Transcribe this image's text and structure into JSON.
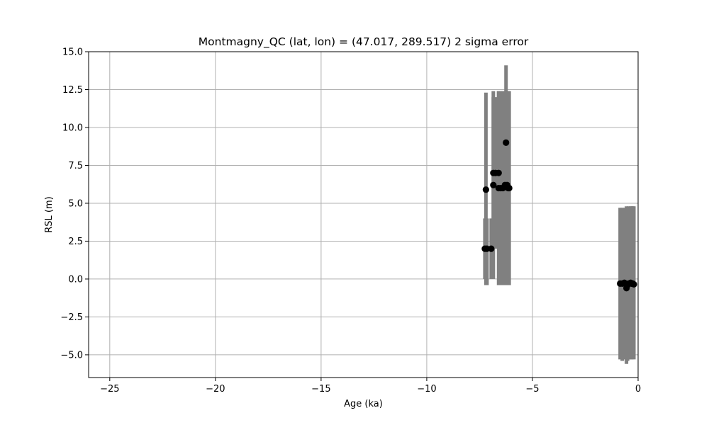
{
  "chart_data": {
    "type": "scatter",
    "title": "Montmagny_QC (lat, lon) = (47.017, 289.517)  2 sigma error",
    "xlabel": "Age (ka)",
    "ylabel": "RSL (m)",
    "xlim": [
      -26,
      0
    ],
    "ylim": [
      -6.5,
      15
    ],
    "x_ticks": [
      -25,
      -20,
      -15,
      -10,
      -5,
      0
    ],
    "y_ticks": [
      -5.0,
      -2.5,
      0.0,
      2.5,
      5.0,
      7.5,
      10.0,
      12.5,
      15.0
    ],
    "x_tick_labels": [
      "−25",
      "−20",
      "−15",
      "−10",
      "−5",
      "0"
    ],
    "y_tick_labels": [
      "−5.0",
      "−2.5",
      "0.0",
      "2.5",
      "5.0",
      "7.5",
      "10.0",
      "12.5",
      "15.0"
    ],
    "grid": true,
    "colors": {
      "marker": "#000000",
      "error_bar": "#808080",
      "grid": "#b0b0b0"
    },
    "points": [
      {
        "x": -7.25,
        "y": 2.0,
        "yerr_low": 0.0,
        "yerr_high": 4.0
      },
      {
        "x": -7.15,
        "y": 2.0,
        "yerr_low": -0.4,
        "yerr_high": 4.0
      },
      {
        "x": -7.2,
        "y": 5.9,
        "yerr_low": -0.4,
        "yerr_high": 12.3
      },
      {
        "x": -6.95,
        "y": 2.0,
        "yerr_low": 0.0,
        "yerr_high": 4.0
      },
      {
        "x": -6.85,
        "y": 6.2,
        "yerr_low": 0.0,
        "yerr_high": 12.4
      },
      {
        "x": -6.85,
        "y": 7.0,
        "yerr_low": 2.0,
        "yerr_high": 12.0
      },
      {
        "x": -6.75,
        "y": 7.0,
        "yerr_low": 2.0,
        "yerr_high": 12.0
      },
      {
        "x": -6.6,
        "y": 7.0,
        "yerr_low": 2.0,
        "yerr_high": 12.4
      },
      {
        "x": -6.6,
        "y": 6.0,
        "yerr_low": -0.4,
        "yerr_high": 12.4
      },
      {
        "x": -6.5,
        "y": 6.0,
        "yerr_low": -0.4,
        "yerr_high": 12.4
      },
      {
        "x": -6.4,
        "y": 6.0,
        "yerr_low": -0.4,
        "yerr_high": 12.4
      },
      {
        "x": -6.3,
        "y": 6.2,
        "yerr_low": -0.4,
        "yerr_high": 12.4
      },
      {
        "x": -6.25,
        "y": 9.0,
        "yerr_low": 3.5,
        "yerr_high": 14.1
      },
      {
        "x": -6.2,
        "y": 6.2,
        "yerr_low": -0.4,
        "yerr_high": 12.4
      },
      {
        "x": -6.15,
        "y": 6.0,
        "yerr_low": -0.4,
        "yerr_high": 12.4
      },
      {
        "x": -6.1,
        "y": 6.0,
        "yerr_low": -0.4,
        "yerr_high": 12.4
      },
      {
        "x": -0.85,
        "y": -0.3,
        "yerr_low": -5.3,
        "yerr_high": 4.7
      },
      {
        "x": -0.75,
        "y": -0.3,
        "yerr_low": -5.4,
        "yerr_high": 4.7
      },
      {
        "x": -0.65,
        "y": -0.25,
        "yerr_low": -5.3,
        "yerr_high": 4.7
      },
      {
        "x": -0.55,
        "y": -0.6,
        "yerr_low": -5.6,
        "yerr_high": 4.8
      },
      {
        "x": -0.5,
        "y": -0.4,
        "yerr_low": -5.4,
        "yerr_high": 4.7
      },
      {
        "x": -0.45,
        "y": -0.3,
        "yerr_low": -5.3,
        "yerr_high": 4.8
      },
      {
        "x": -0.35,
        "y": -0.25,
        "yerr_low": -5.3,
        "yerr_high": 4.8
      },
      {
        "x": -0.3,
        "y": -0.3,
        "yerr_low": -5.3,
        "yerr_high": 4.8
      },
      {
        "x": -0.25,
        "y": -0.3,
        "yerr_low": -5.2,
        "yerr_high": 4.8
      },
      {
        "x": -0.2,
        "y": -0.35,
        "yerr_low": -5.3,
        "yerr_high": 4.8
      }
    ]
  }
}
